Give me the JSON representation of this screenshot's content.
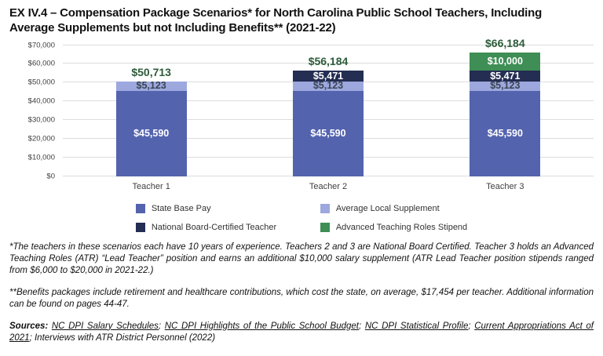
{
  "title": {
    "line1": "EX IV.4 – Compensation Package Scenarios* for North Carolina Public School Teachers, Including",
    "line2": "Average Supplements but not Including Benefits** (2021-22)"
  },
  "chart_data": {
    "type": "bar",
    "stacked": true,
    "categories": [
      "Teacher 1",
      "Teacher 2",
      "Teacher 3"
    ],
    "series": [
      {
        "name": "State Base Pay",
        "color": "#5463AE",
        "label_color": "#FFFFFF",
        "values": [
          45590,
          45590,
          45590
        ]
      },
      {
        "name": "Average Local Supplement",
        "color": "#9DA8DE",
        "label_color": "#3A4453",
        "values": [
          5123,
          5123,
          5123
        ]
      },
      {
        "name": "National Board-Certified Teacher",
        "color": "#242D52",
        "label_color": "#FFFFFF",
        "values": [
          0,
          5471,
          5471
        ]
      },
      {
        "name": "Advanced Teaching Roles Stipend",
        "color": "#3E8E55",
        "label_color": "#FFFFFF",
        "values": [
          0,
          0,
          10000
        ]
      }
    ],
    "totals": [
      50713,
      56184,
      66184
    ],
    "total_label_color": "#2B5B38",
    "y_ticks": [
      "$0",
      "$10,000",
      "$20,000",
      "$30,000",
      "$40,000",
      "$50,000",
      "$60,000",
      "$70,000"
    ],
    "ylim": [
      0,
      70000
    ],
    "grid": true,
    "legend_position": "bottom-center",
    "gridline_color": "#DCDCDC"
  },
  "footnotes": [
    "*The teachers in these scenarios each have 10 years of experience. Teachers 2 and 3 are National Board Certified. Teacher 3 holds an Advanced Teaching Roles (ATR) “Lead Teacher” position and earns an additional $10,000 salary supplement (ATR Lead Teacher position stipends ranged from $6,000 to $20,000 in 2021-22.)",
    "**Benefits packages include retirement and healthcare contributions, which cost the state, on average, $17,454 per teacher. Additional information can be found on pages 44-47."
  ],
  "sources": {
    "prefix": "Sources:",
    "separator": "; ",
    "items": [
      {
        "text": "NC DPI Salary Schedules",
        "underlined": true
      },
      {
        "text": "NC DPI Highlights of the Public School Budget",
        "underlined": true
      },
      {
        "text": "NC DPI Statistical Profile",
        "underlined": true
      },
      {
        "text": "Current Appropriations Act of 2021",
        "underlined": true
      },
      {
        "text": "Interviews with ATR District Personnel (2022)",
        "underlined": false
      }
    ]
  }
}
